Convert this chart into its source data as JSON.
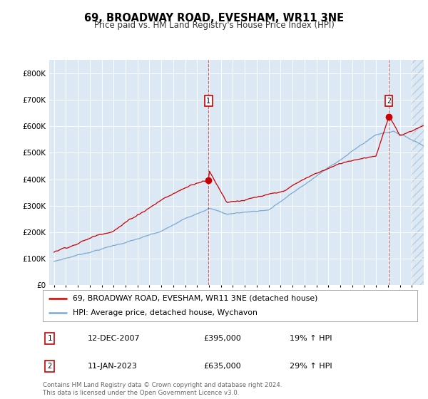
{
  "title": "69, BROADWAY ROAD, EVESHAM, WR11 3NE",
  "subtitle": "Price paid vs. HM Land Registry's House Price Index (HPI)",
  "plot_bg_color": "#dce9f5",
  "hatch_color": "#b8cfe0",
  "red_line_color": "#cc0000",
  "blue_line_color": "#7aaacf",
  "marker1_date": "12-DEC-2007",
  "marker1_price": "£395,000",
  "marker1_hpi": "19% ↑ HPI",
  "marker1_year": 2007.95,
  "marker1_value": 395000,
  "marker2_date": "11-JAN-2023",
  "marker2_price": "£635,000",
  "marker2_hpi": "29% ↑ HPI",
  "marker2_year": 2023.04,
  "marker2_value": 635000,
  "legend_line1": "69, BROADWAY ROAD, EVESHAM, WR11 3NE (detached house)",
  "legend_line2": "HPI: Average price, detached house, Wychavon",
  "footer": "Contains HM Land Registry data © Crown copyright and database right 2024.\nThis data is licensed under the Open Government Licence v3.0.",
  "ylim": [
    0,
    850000
  ],
  "yticks": [
    0,
    100000,
    200000,
    300000,
    400000,
    500000,
    600000,
    700000,
    800000
  ],
  "xlim_start": 1994.6,
  "xlim_end": 2026.0,
  "start_year": 1995,
  "end_year": 2025
}
